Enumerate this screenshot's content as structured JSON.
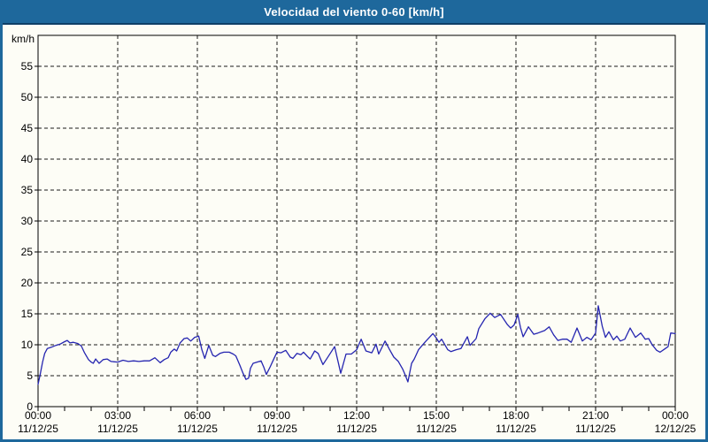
{
  "window": {
    "title": "Velocidad del viento 0-60 [km/h]",
    "title_bar_color": "#1e689c",
    "title_bar_edge_color": "#0f3f66",
    "border_color": "#1e689c",
    "background_color": "#fdfdf6"
  },
  "chart_data": {
    "type": "line",
    "title": "Velocidad del viento 0-60 [km/h]",
    "ylabel": "km/h",
    "xlabel": "",
    "ylim": [
      0,
      60
    ],
    "xlim_hours": [
      0,
      24
    ],
    "grid": "dashed",
    "legend": "none",
    "line_color": "#2525b0",
    "axis_color": "#000000",
    "y_ticks": [
      {
        "value": 0,
        "label": "0"
      },
      {
        "value": 5,
        "label": "5"
      },
      {
        "value": 10,
        "label": "10"
      },
      {
        "value": 15,
        "label": "15"
      },
      {
        "value": 20,
        "label": "20"
      },
      {
        "value": 25,
        "label": "25"
      },
      {
        "value": 30,
        "label": "30"
      },
      {
        "value": 35,
        "label": "35"
      },
      {
        "value": 40,
        "label": "40"
      },
      {
        "value": 45,
        "label": "45"
      },
      {
        "value": 50,
        "label": "50"
      },
      {
        "value": 55,
        "label": "55"
      }
    ],
    "x_ticks": [
      {
        "hour": 0,
        "time": "00:00",
        "date": "11/12/25"
      },
      {
        "hour": 3,
        "time": "03:00",
        "date": "11/12/25"
      },
      {
        "hour": 6,
        "time": "06:00",
        "date": "11/12/25"
      },
      {
        "hour": 9,
        "time": "09:00",
        "date": "11/12/25"
      },
      {
        "hour": 12,
        "time": "12:00",
        "date": "11/12/25"
      },
      {
        "hour": 15,
        "time": "15:00",
        "date": "11/12/25"
      },
      {
        "hour": 18,
        "time": "18:00",
        "date": "11/12/25"
      },
      {
        "hour": 21,
        "time": "21:00",
        "date": "11/12/25"
      },
      {
        "hour": 24,
        "time": "00:00",
        "date": "12/12/25"
      }
    ],
    "x_minor_tick_every_hours": 1,
    "series": [
      {
        "name": "Velocidad del viento [km/h]",
        "points": [
          [
            0.0,
            3.6
          ],
          [
            0.08,
            5.2
          ],
          [
            0.17,
            7.2
          ],
          [
            0.25,
            8.6
          ],
          [
            0.35,
            9.4
          ],
          [
            0.5,
            9.6
          ],
          [
            0.67,
            9.9
          ],
          [
            0.83,
            10.1
          ],
          [
            1.0,
            10.5
          ],
          [
            1.1,
            10.7
          ],
          [
            1.2,
            10.3
          ],
          [
            1.33,
            10.4
          ],
          [
            1.5,
            10.2
          ],
          [
            1.63,
            9.8
          ],
          [
            1.75,
            8.7
          ],
          [
            1.9,
            7.6
          ],
          [
            2.0,
            7.2
          ],
          [
            2.08,
            7.0
          ],
          [
            2.17,
            7.7
          ],
          [
            2.3,
            7.0
          ],
          [
            2.45,
            7.6
          ],
          [
            2.6,
            7.7
          ],
          [
            2.75,
            7.3
          ],
          [
            3.0,
            7.2
          ],
          [
            3.2,
            7.5
          ],
          [
            3.4,
            7.3
          ],
          [
            3.6,
            7.4
          ],
          [
            3.8,
            7.3
          ],
          [
            4.0,
            7.4
          ],
          [
            4.2,
            7.4
          ],
          [
            4.4,
            7.9
          ],
          [
            4.6,
            7.1
          ],
          [
            4.75,
            7.6
          ],
          [
            4.9,
            7.9
          ],
          [
            5.0,
            8.8
          ],
          [
            5.13,
            9.3
          ],
          [
            5.22,
            9.0
          ],
          [
            5.35,
            10.3
          ],
          [
            5.5,
            11.0
          ],
          [
            5.62,
            11.1
          ],
          [
            5.75,
            10.6
          ],
          [
            5.9,
            11.2
          ],
          [
            6.05,
            11.4
          ],
          [
            6.17,
            9.2
          ],
          [
            6.28,
            7.8
          ],
          [
            6.43,
            9.9
          ],
          [
            6.58,
            8.3
          ],
          [
            6.68,
            8.1
          ],
          [
            6.85,
            8.6
          ],
          [
            7.0,
            8.8
          ],
          [
            7.2,
            8.8
          ],
          [
            7.35,
            8.5
          ],
          [
            7.45,
            8.2
          ],
          [
            7.6,
            6.7
          ],
          [
            7.72,
            5.4
          ],
          [
            7.83,
            4.4
          ],
          [
            7.93,
            4.6
          ],
          [
            8.0,
            6.2
          ],
          [
            8.1,
            7.0
          ],
          [
            8.25,
            7.2
          ],
          [
            8.4,
            7.4
          ],
          [
            8.5,
            6.4
          ],
          [
            8.6,
            5.2
          ],
          [
            8.75,
            6.5
          ],
          [
            8.9,
            7.9
          ],
          [
            9.0,
            8.8
          ],
          [
            9.15,
            8.7
          ],
          [
            9.33,
            9.1
          ],
          [
            9.5,
            8.0
          ],
          [
            9.6,
            7.8
          ],
          [
            9.75,
            8.6
          ],
          [
            9.9,
            8.4
          ],
          [
            10.0,
            8.8
          ],
          [
            10.15,
            8.1
          ],
          [
            10.25,
            7.7
          ],
          [
            10.42,
            9.0
          ],
          [
            10.55,
            8.6
          ],
          [
            10.73,
            6.8
          ],
          [
            10.9,
            7.9
          ],
          [
            11.05,
            8.9
          ],
          [
            11.17,
            9.7
          ],
          [
            11.4,
            5.4
          ],
          [
            11.6,
            8.5
          ],
          [
            11.8,
            8.5
          ],
          [
            12.0,
            9.2
          ],
          [
            12.17,
            10.9
          ],
          [
            12.35,
            9.0
          ],
          [
            12.57,
            8.7
          ],
          [
            12.73,
            10.1
          ],
          [
            12.83,
            8.5
          ],
          [
            13.07,
            10.6
          ],
          [
            13.23,
            9.3
          ],
          [
            13.4,
            8.0
          ],
          [
            13.57,
            7.3
          ],
          [
            13.73,
            6.1
          ],
          [
            13.83,
            5.1
          ],
          [
            13.93,
            4.0
          ],
          [
            14.07,
            7.0
          ],
          [
            14.17,
            7.7
          ],
          [
            14.33,
            9.2
          ],
          [
            14.57,
            10.4
          ],
          [
            14.87,
            11.8
          ],
          [
            15.0,
            11.1
          ],
          [
            15.1,
            10.4
          ],
          [
            15.2,
            10.9
          ],
          [
            15.43,
            9.2
          ],
          [
            15.55,
            8.9
          ],
          [
            15.75,
            9.2
          ],
          [
            15.93,
            9.4
          ],
          [
            16.17,
            11.3
          ],
          [
            16.27,
            9.9
          ],
          [
            16.5,
            11.0
          ],
          [
            16.6,
            12.6
          ],
          [
            16.83,
            14.2
          ],
          [
            17.03,
            15.1
          ],
          [
            17.2,
            14.4
          ],
          [
            17.42,
            14.9
          ],
          [
            17.67,
            13.3
          ],
          [
            17.8,
            12.7
          ],
          [
            17.93,
            13.2
          ],
          [
            18.07,
            14.9
          ],
          [
            18.17,
            12.8
          ],
          [
            18.27,
            11.3
          ],
          [
            18.47,
            12.9
          ],
          [
            18.67,
            11.7
          ],
          [
            18.83,
            11.9
          ],
          [
            19.08,
            12.3
          ],
          [
            19.25,
            12.9
          ],
          [
            19.42,
            11.6
          ],
          [
            19.58,
            10.7
          ],
          [
            19.75,
            10.9
          ],
          [
            19.92,
            10.9
          ],
          [
            20.08,
            10.4
          ],
          [
            20.3,
            12.7
          ],
          [
            20.5,
            10.6
          ],
          [
            20.67,
            11.2
          ],
          [
            20.83,
            10.8
          ],
          [
            21.0,
            11.9
          ],
          [
            21.1,
            16.3
          ],
          [
            21.25,
            13.0
          ],
          [
            21.37,
            11.2
          ],
          [
            21.5,
            12.1
          ],
          [
            21.67,
            10.8
          ],
          [
            21.8,
            11.4
          ],
          [
            21.93,
            10.6
          ],
          [
            22.1,
            10.9
          ],
          [
            22.3,
            12.7
          ],
          [
            22.5,
            11.2
          ],
          [
            22.7,
            11.9
          ],
          [
            22.87,
            10.9
          ],
          [
            23.0,
            11.0
          ],
          [
            23.13,
            10.0
          ],
          [
            23.3,
            9.1
          ],
          [
            23.43,
            8.8
          ],
          [
            23.63,
            9.4
          ],
          [
            23.73,
            9.7
          ],
          [
            23.83,
            11.9
          ],
          [
            24.0,
            11.8
          ]
        ]
      }
    ]
  }
}
